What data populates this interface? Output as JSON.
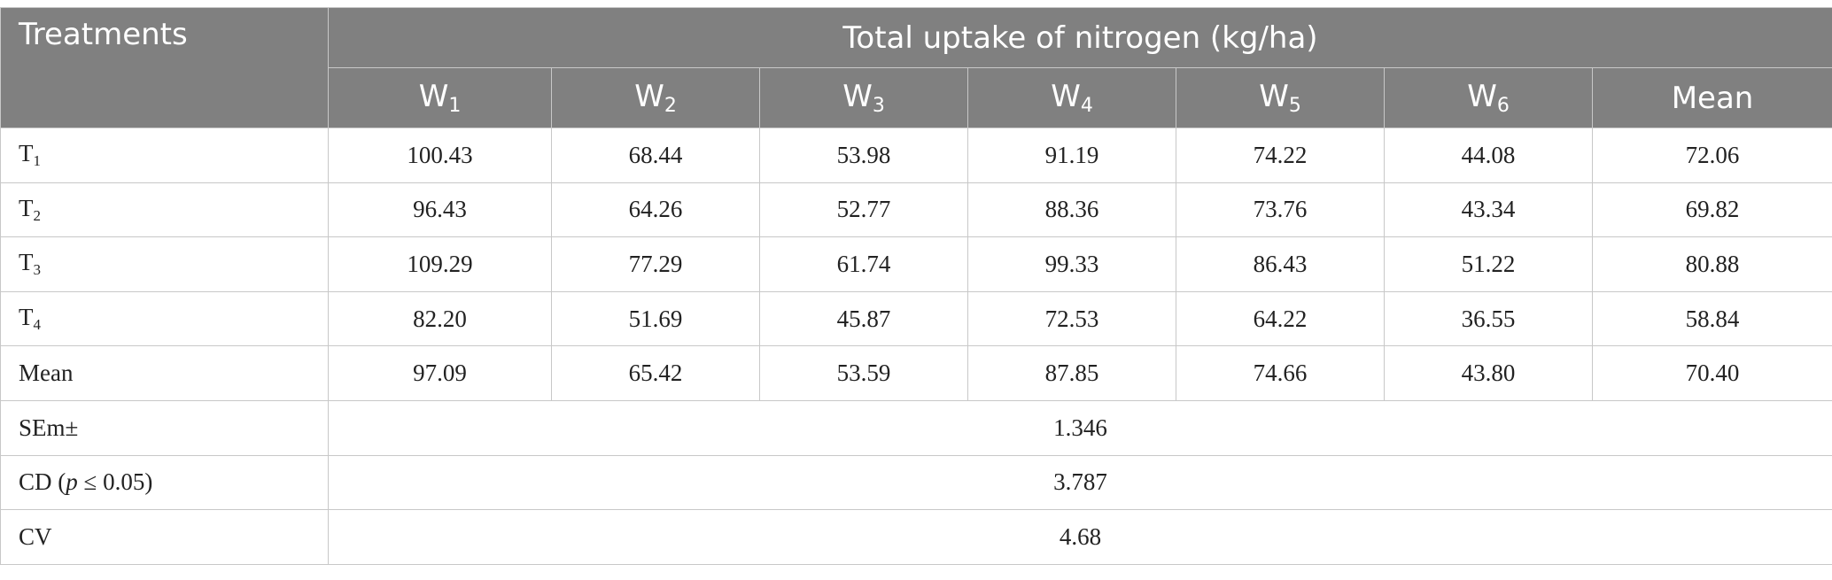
{
  "table": {
    "treatments_header": "Treatments",
    "group_header": "Total uptake of nitrogen (kg/ha)",
    "columns": [
      {
        "base": "W",
        "sub": "1"
      },
      {
        "base": "W",
        "sub": "2"
      },
      {
        "base": "W",
        "sub": "3"
      },
      {
        "base": "W",
        "sub": "4"
      },
      {
        "base": "W",
        "sub": "5"
      },
      {
        "base": "W",
        "sub": "6"
      },
      {
        "base": "Mean",
        "sub": ""
      }
    ],
    "rows": [
      {
        "label_base": "T",
        "label_sub": "1",
        "values": [
          "100.43",
          "68.44",
          "53.98",
          "91.19",
          "74.22",
          "44.08",
          "72.06"
        ]
      },
      {
        "label_base": "T",
        "label_sub": "2",
        "values": [
          "96.43",
          "64.26",
          "52.77",
          "88.36",
          "73.76",
          "43.34",
          "69.82"
        ]
      },
      {
        "label_base": "T",
        "label_sub": "3",
        "values": [
          "109.29",
          "77.29",
          "61.74",
          "99.33",
          "86.43",
          "51.22",
          "80.88"
        ]
      },
      {
        "label_base": "T",
        "label_sub": "4",
        "values": [
          "82.20",
          "51.69",
          "45.87",
          "72.53",
          "64.22",
          "36.55",
          "58.84"
        ]
      },
      {
        "label_base": "Mean",
        "label_sub": "",
        "values": [
          "97.09",
          "65.42",
          "53.59",
          "87.85",
          "74.66",
          "43.80",
          "70.40"
        ]
      }
    ],
    "stats": {
      "sem_label": "SEm±",
      "sem_value": "1.346",
      "cd_label_pre": "CD (",
      "cd_label_var": "p",
      "cd_label_post": " ≤ 0.05)",
      "cd_value": "3.787",
      "cv_label": "CV",
      "cv_value": "4.68"
    }
  }
}
